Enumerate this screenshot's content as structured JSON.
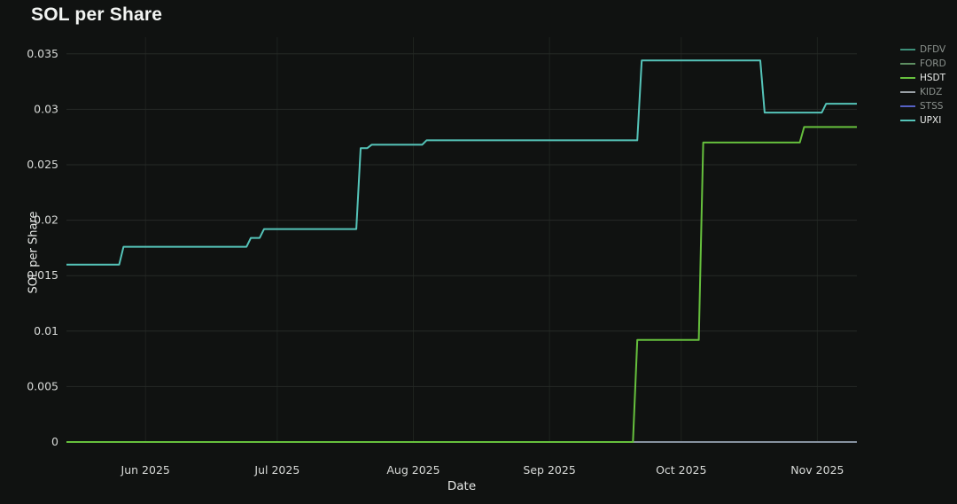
{
  "colors": {
    "background": "#101211",
    "title": "#f2f4f2",
    "axis_title": "#e8eae8",
    "tick_label": "#d8dad8",
    "grid": "#262a27",
    "grid_vertical": "#1e221f",
    "legend_active": "#e9ebe9",
    "legend_inactive": "#8b918d"
  },
  "legend": {
    "items": [
      {
        "label": "DFDV",
        "color": "#3d8f79",
        "active": false
      },
      {
        "label": "FORD",
        "color": "#5e8f62",
        "active": false
      },
      {
        "label": "HSDT",
        "color": "#66c03d",
        "active": true
      },
      {
        "label": "KIDZ",
        "color": "#9aa0a6",
        "active": false
      },
      {
        "label": "STSS",
        "color": "#5661c5",
        "active": false
      },
      {
        "label": "UPXI",
        "color": "#55c4b9",
        "active": true
      }
    ]
  },
  "chart_data": {
    "type": "line",
    "title": "SOL per Share",
    "xlabel": "Date",
    "ylabel": "SOL per Share",
    "grid": true,
    "legend_position": "top-right",
    "x_axis": {
      "unit": "days since 2025-05-14",
      "range": [
        0,
        180
      ],
      "tick_positions": [
        18,
        48,
        79,
        110,
        140,
        171
      ],
      "tick_labels": [
        "Jun 2025",
        "Jul 2025",
        "Aug 2025",
        "Sep 2025",
        "Oct 2025",
        "Nov 2025"
      ]
    },
    "y_axis": {
      "range": [
        0,
        0.0365
      ],
      "tick_values": [
        0,
        0.005,
        0.01,
        0.015,
        0.02,
        0.025,
        0.03,
        0.035
      ],
      "tick_labels": [
        "0",
        "0.005",
        "0.01",
        "0.015",
        "0.02",
        "0.025",
        "0.03",
        "0.035"
      ]
    },
    "series": [
      {
        "name": "DFDV",
        "color": "#3d8f79",
        "width": 1.5,
        "z": 0,
        "points": [
          [
            0,
            0
          ],
          [
            180,
            0
          ]
        ]
      },
      {
        "name": "FORD",
        "color": "#5e8f62",
        "width": 1.5,
        "z": 1,
        "points": [
          [
            0,
            0
          ],
          [
            180,
            0
          ]
        ]
      },
      {
        "name": "HSDT",
        "color": "#66c03d",
        "width": 2,
        "z": 4,
        "points": [
          [
            0,
            0
          ],
          [
            129,
            0
          ],
          [
            130,
            0.0092
          ],
          [
            144,
            0.0092
          ],
          [
            145,
            0.027
          ],
          [
            167,
            0.027
          ],
          [
            168,
            0.0284
          ],
          [
            180,
            0.0284
          ]
        ]
      },
      {
        "name": "KIDZ",
        "color": "#9aa0a6",
        "width": 1.5,
        "z": 3,
        "points": [
          [
            0,
            0
          ],
          [
            180,
            0
          ]
        ]
      },
      {
        "name": "STSS",
        "color": "#5661c5",
        "width": 1.5,
        "z": 2,
        "points": [
          [
            0,
            0
          ],
          [
            180,
            0
          ]
        ]
      },
      {
        "name": "UPXI",
        "color": "#55c4b9",
        "width": 2,
        "z": 5,
        "points": [
          [
            0,
            0.016
          ],
          [
            12,
            0.016
          ],
          [
            13,
            0.0176
          ],
          [
            41,
            0.0176
          ],
          [
            42,
            0.0184
          ],
          [
            44,
            0.0184
          ],
          [
            45,
            0.0192
          ],
          [
            66,
            0.0192
          ],
          [
            67,
            0.0265
          ],
          [
            68.5,
            0.0265
          ],
          [
            69.5,
            0.0268
          ],
          [
            81,
            0.0268
          ],
          [
            82,
            0.0272
          ],
          [
            130,
            0.0272
          ],
          [
            131,
            0.0344
          ],
          [
            158,
            0.0344
          ],
          [
            159,
            0.0297
          ],
          [
            172,
            0.0297
          ],
          [
            173,
            0.0305
          ],
          [
            180,
            0.0305
          ]
        ]
      }
    ]
  }
}
